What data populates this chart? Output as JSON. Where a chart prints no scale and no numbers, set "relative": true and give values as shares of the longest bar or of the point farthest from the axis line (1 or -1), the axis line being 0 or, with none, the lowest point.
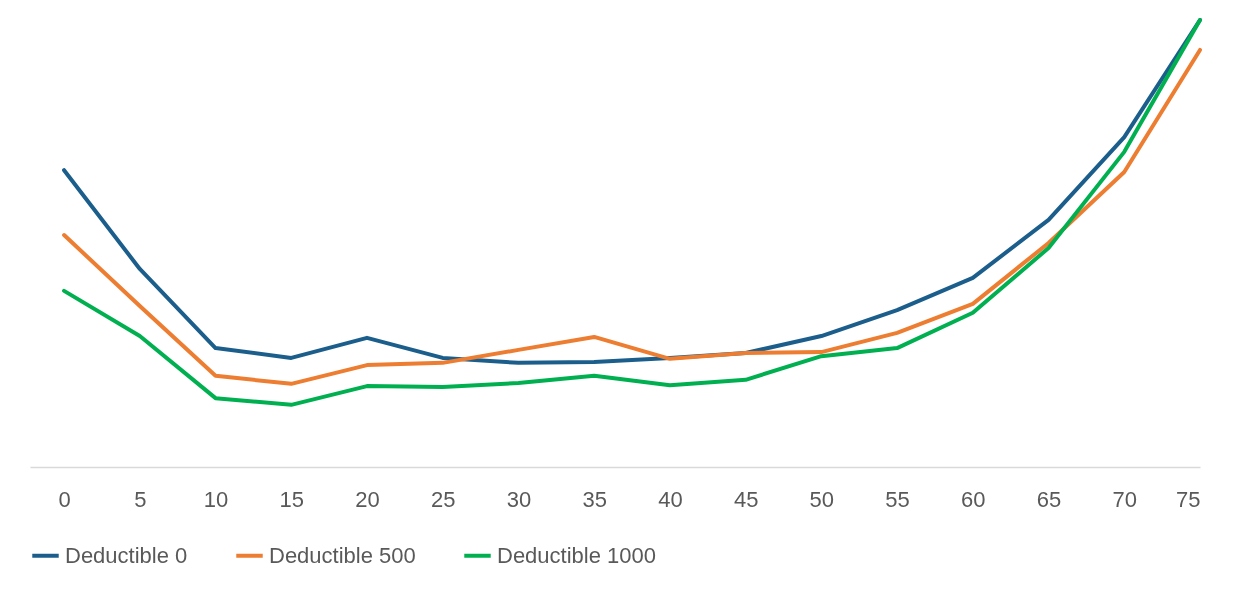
{
  "chart_data": {
    "type": "line",
    "relative": true,
    "categories": [
      "0",
      "5",
      "10",
      "15",
      "20",
      "25",
      "30",
      "35",
      "40",
      "45",
      "50",
      "55",
      "60",
      "65",
      "70",
      "75"
    ],
    "series": [
      {
        "name": "Deductible 0",
        "color": "#1b5e8c",
        "values": [
          0.664,
          0.443,
          0.266,
          0.244,
          0.289,
          0.244,
          0.233,
          0.235,
          0.244,
          0.255,
          0.293,
          0.351,
          0.423,
          0.553,
          0.738,
          1
        ]
      },
      {
        "name": "Deductible 500",
        "color": "#ed7d31",
        "values": [
          0.519,
          0.36,
          0.204,
          0.186,
          0.228,
          0.233,
          0.262,
          0.291,
          0.242,
          0.255,
          0.257,
          0.3,
          0.365,
          0.501,
          0.66,
          0.933
        ]
      },
      {
        "name": "Deductible 1000",
        "color": "#00b050",
        "values": [
          0.394,
          0.293,
          0.154,
          0.139,
          0.181,
          0.179,
          0.188,
          0.204,
          0.183,
          0.195,
          0.248,
          0.266,
          0.345,
          0.49,
          0.705,
          1
        ]
      }
    ],
    "grid": false,
    "legend": "bottom",
    "marker": "none",
    "line_style": "solid"
  }
}
